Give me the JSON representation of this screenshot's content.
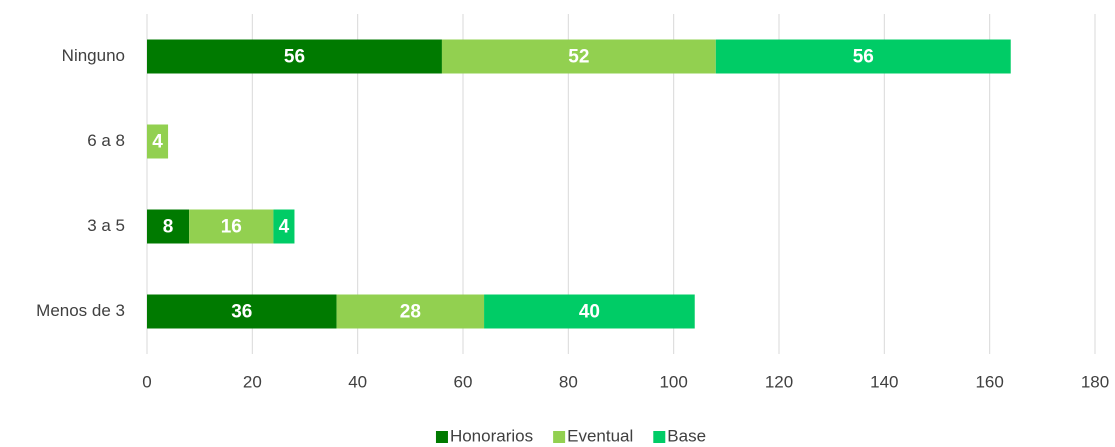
{
  "chart_data": {
    "type": "bar",
    "orientation": "horizontal",
    "stacked": true,
    "categories": [
      "Ninguno",
      "6 a 8",
      "3 a 5",
      "Menos de 3"
    ],
    "series": [
      {
        "name": "Honorarios",
        "color": "#007a00",
        "values": [
          56,
          null,
          8,
          36
        ]
      },
      {
        "name": "Eventual",
        "color": "#92d050",
        "values": [
          52,
          4,
          16,
          28
        ]
      },
      {
        "name": "Base",
        "color": "#00cc66",
        "values": [
          56,
          null,
          4,
          40
        ]
      }
    ],
    "xlim": [
      0,
      180
    ],
    "xticks": [
      0,
      20,
      40,
      60,
      80,
      100,
      120,
      140,
      160,
      180
    ],
    "grid": true,
    "legend": "bottom"
  }
}
